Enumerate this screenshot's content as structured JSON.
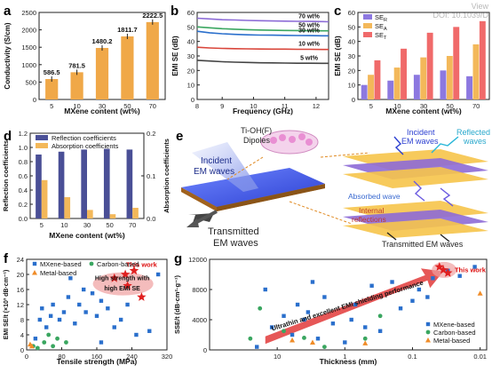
{
  "watermark": {
    "line1": "View",
    "line2": "DOI: 10.1039/D"
  },
  "panel_labels": {
    "a": "a",
    "b": "b",
    "c": "c",
    "d": "d",
    "e": "e",
    "f": "f",
    "g": "g"
  },
  "colors": {
    "orange": "#f0a848",
    "dark_blue": "#4a4f96",
    "light_orange": "#f3b85a",
    "red": "#d9453a",
    "blue": "#2a6fcc",
    "green": "#3aa660",
    "purple": "#8c6bd6"
  },
  "chart_data": [
    {
      "id": "a",
      "type": "bar",
      "categories": [
        "5",
        "10",
        "30",
        "50",
        "70"
      ],
      "values": [
        586.5,
        781.5,
        1480.2,
        1811.7,
        2222.5
      ],
      "value_labels": [
        "586.5",
        "781.5",
        "1480.2",
        "1811.7",
        "2222.5"
      ],
      "xlabel": "MXene content (wt%)",
      "ylabel": "Conductivity (S/cm)",
      "ylim": [
        0,
        2500
      ],
      "yticks": [
        "0",
        "500",
        "1000",
        "1500",
        "2000",
        "2500"
      ],
      "color": "#f0a848"
    },
    {
      "id": "b",
      "type": "line",
      "x": [
        8.2,
        8.6,
        9.0,
        9.4,
        9.8,
        10.2,
        10.6,
        11.0,
        11.4,
        11.8,
        12.2,
        12.4
      ],
      "series": [
        {
          "name": "70 wt%",
          "values": [
            56,
            55.5,
            55,
            54.8,
            54.5,
            54.3,
            54.1,
            54,
            53.9,
            53.8,
            53.7,
            53.6
          ],
          "color": "#8c6bd6"
        },
        {
          "name": "50 wt%",
          "values": [
            50,
            49.4,
            48.8,
            48.4,
            48.1,
            47.9,
            47.7,
            47.6,
            47.5,
            47.4,
            47.3,
            47.3
          ],
          "color": "#3aa660"
        },
        {
          "name": "30 wt%",
          "values": [
            47,
            46,
            45.3,
            44.9,
            44.6,
            44.4,
            44.3,
            44.2,
            44.1,
            44,
            43.9,
            43.9
          ],
          "color": "#2a6fcc"
        },
        {
          "name": "10 wt%",
          "values": [
            36,
            35.5,
            35.2,
            35,
            34.9,
            34.8,
            34.7,
            34.7,
            34.6,
            34.6,
            34.5,
            34.5
          ],
          "color": "#d9453a"
        },
        {
          "name": "5 wt%",
          "values": [
            27,
            26.5,
            26,
            25.7,
            25.5,
            25.3,
            25.2,
            25.1,
            25,
            25,
            24.9,
            24.9
          ],
          "color": "#444444"
        }
      ],
      "xlabel": "Frequency (GHz)",
      "ylabel": "EMI SE (dB)",
      "xlim": [
        8.2,
        12.4
      ],
      "ylim": [
        0,
        60
      ],
      "xticks": [
        "8",
        "9",
        "10",
        "11",
        "12"
      ],
      "yticks": [
        "0",
        "10",
        "20",
        "30",
        "40",
        "50",
        "60"
      ]
    },
    {
      "id": "c",
      "type": "bar",
      "categories": [
        "5",
        "10",
        "30",
        "50",
        "70"
      ],
      "series": [
        {
          "name": "SE_R",
          "label_main": "SE",
          "label_sub": "R",
          "values": [
            10,
            13,
            17,
            20,
            16
          ],
          "color": "#8c78e0"
        },
        {
          "name": "SE_A",
          "label_main": "SE",
          "label_sub": "A",
          "values": [
            17,
            22,
            29,
            30,
            38
          ],
          "color": "#f3b85a"
        },
        {
          "name": "SE_T",
          "label_main": "SE",
          "label_sub": "T",
          "values": [
            27,
            35,
            46,
            50,
            54
          ],
          "color": "#f06a6a"
        }
      ],
      "xlabel": "MXene content (wt%)",
      "ylabel": "EMI SE (dB)",
      "ylim": [
        0,
        60
      ],
      "yticks": [
        "0",
        "10",
        "20",
        "30",
        "40",
        "50",
        "60"
      ]
    },
    {
      "id": "d",
      "type": "bar",
      "categories": [
        "5",
        "10",
        "30",
        "50",
        "70"
      ],
      "series": [
        {
          "name": "Reflection coefficients",
          "axis": "left",
          "values": [
            0.9,
            0.94,
            0.97,
            0.98,
            0.97
          ],
          "color": "#4a4f96"
        },
        {
          "name": "Absorption coefficients",
          "axis": "right",
          "values": [
            0.09,
            0.05,
            0.02,
            0.01,
            0.025
          ],
          "color": "#f3b85a"
        }
      ],
      "xlabel": "MXene content (wt%)",
      "ylabel": "Reflection coefficients",
      "ylabel_right": "Absorption coefficients",
      "ylim": [
        0,
        1.2
      ],
      "ylim_right": [
        0,
        0.2
      ],
      "yticks": [
        "0.0",
        "0.2",
        "0.4",
        "0.6",
        "0.8",
        "1.0",
        "1.2"
      ],
      "yticks_right": [
        "0.0",
        "0.1",
        "0.2"
      ]
    },
    {
      "id": "f",
      "type": "scatter",
      "series": [
        {
          "name": "MXene-based",
          "marker": "square",
          "color": "#2a6fcc",
          "points": [
            [
              20,
              3
            ],
            [
              30,
              8
            ],
            [
              35,
              11
            ],
            [
              45,
              6
            ],
            [
              55,
              9
            ],
            [
              60,
              12
            ],
            [
              75,
              8
            ],
            [
              85,
              10
            ],
            [
              95,
              14
            ],
            [
              110,
              7
            ],
            [
              120,
              12
            ],
            [
              135,
              10
            ],
            [
              150,
              15
            ],
            [
              160,
              9
            ],
            [
              170,
              13
            ],
            [
              185,
              11
            ],
            [
              200,
              6
            ],
            [
              215,
              8
            ],
            [
              230,
              12
            ],
            [
              250,
              4
            ],
            [
              280,
              5
            ],
            [
              300,
              20
            ],
            [
              130,
              16
            ],
            [
              100,
              19
            ],
            [
              170,
              2
            ]
          ]
        },
        {
          "name": "Carbon-based",
          "marker": "circle",
          "color": "#3aa660",
          "points": [
            [
              15,
              1
            ],
            [
              25,
              0.5
            ],
            [
              40,
              2
            ],
            [
              60,
              1
            ],
            [
              70,
              3
            ],
            [
              90,
              2
            ],
            [
              50,
              4
            ]
          ]
        },
        {
          "name": "Metal-based",
          "marker": "triangle",
          "color": "#f08c28",
          "points": [
            [
              8,
              1.5
            ],
            [
              12,
              1
            ]
          ]
        },
        {
          "name": "This work",
          "marker": "star",
          "color": "#e02020",
          "points": [
            [
              200,
              19
            ],
            [
              225,
              20
            ],
            [
              245,
              21
            ],
            [
              262,
              14
            ],
            [
              230,
              17
            ]
          ]
        }
      ],
      "annotation": [
        "High strength with",
        "high EMI SE"
      ],
      "this_work_label": "This work",
      "xlabel": "Tensile strength (MPa)",
      "ylabel": "EMI SE/t (×10³ dB·cm⁻¹)",
      "xlim": [
        0,
        320
      ],
      "ylim": [
        0,
        24
      ],
      "xticks": [
        "0",
        "80",
        "160",
        "240",
        "320"
      ],
      "yticks": [
        "0",
        "4",
        "8",
        "12",
        "16",
        "20",
        "24"
      ]
    },
    {
      "id": "g",
      "type": "scatter",
      "x_scale": "log-reversed",
      "series": [
        {
          "name": "MXene-based",
          "marker": "square",
          "color": "#2a6fcc",
          "points": [
            [
              20,
              400
            ],
            [
              15,
              8000
            ],
            [
              12,
              3000
            ],
            [
              8,
              4500
            ],
            [
              6,
              2000
            ],
            [
              5,
              6000
            ],
            [
              4,
              4000
            ],
            [
              3.5,
              5000
            ],
            [
              3,
              9000
            ],
            [
              2.5,
              1500
            ],
            [
              2,
              7000
            ],
            [
              1.5,
              3500
            ],
            [
              1,
              1000
            ],
            [
              0.8,
              4000
            ],
            [
              0.7,
              6000
            ],
            [
              0.5,
              3000
            ],
            [
              0.4,
              8500
            ],
            [
              0.3,
              2500
            ],
            [
              0.2,
              9000
            ],
            [
              0.15,
              5500
            ],
            [
              0.1,
              6500
            ],
            [
              0.08,
              8000
            ],
            [
              0.06,
              7000
            ],
            [
              0.05,
              9500
            ],
            [
              0.03,
              10500
            ],
            [
              0.02,
              9800
            ],
            [
              0.012,
              11000
            ]
          ]
        },
        {
          "name": "Carbon-based",
          "marker": "circle",
          "color": "#3aa660",
          "points": [
            [
              25,
              1500
            ],
            [
              18,
              5500
            ],
            [
              8,
              2500
            ],
            [
              4,
              1600
            ],
            [
              2,
              400
            ],
            [
              0.5,
              1500
            ],
            [
              0.3,
              4500
            ]
          ]
        },
        {
          "name": "Metal-based",
          "marker": "triangle",
          "color": "#f08c28",
          "points": [
            [
              6,
              1300
            ],
            [
              3,
              1000
            ],
            [
              0.5,
              900
            ],
            [
              0.01,
              7500
            ]
          ]
        },
        {
          "name": "This work",
          "marker": "star",
          "color": "#e02020",
          "points": [
            [
              0.04,
              11000
            ],
            [
              0.035,
              10600
            ],
            [
              0.03,
              10200
            ]
          ]
        }
      ],
      "annotation": "Ultrathin and excellent EMI shielding performance",
      "this_work_label": "This work",
      "xlabel": "Thickness (mm)",
      "ylabel": "SSE/t (dB·cm²·g⁻¹)",
      "xlim": [
        100,
        0.008
      ],
      "ylim": [
        0,
        12000
      ],
      "xticks": [
        "10",
        "1",
        "0.1",
        "0.01"
      ],
      "yticks": [
        "0",
        "4000",
        "8000",
        "12000"
      ]
    }
  ],
  "schematic": {
    "incident_left": [
      "Incident",
      "EM waves"
    ],
    "transmitted_left": [
      "Transmitted",
      "EM waves"
    ],
    "dipoles": [
      "Ti-OH(F)",
      "Dipoles"
    ],
    "incident_right": [
      "Incident",
      "EM waves"
    ],
    "reflected": [
      "Reflected",
      "waves"
    ],
    "absorbed": "Absorbed wave",
    "internal": [
      "Internal",
      "reflections"
    ],
    "transmitted_right": "Transmitted EM waves"
  }
}
